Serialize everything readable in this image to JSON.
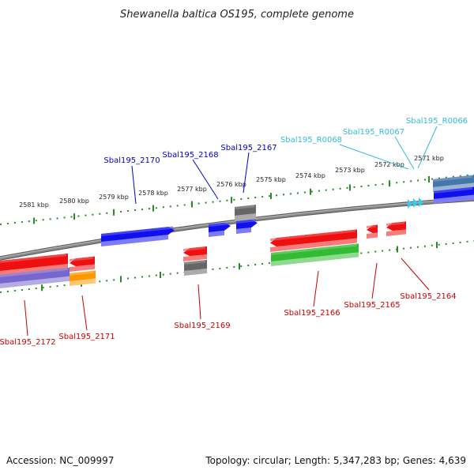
{
  "title": "Shewanella baltica OS195, complete genome",
  "footer": {
    "accession": "Accession: NC_009997",
    "summary": "Topology: circular; Length: 5,347,283 bp; Genes: 4,639"
  },
  "colors": {
    "backbone": "#8a8a8a",
    "tick": "#2a8a2a",
    "label_forward": "#0000cc",
    "label_reverse": "#cc0000",
    "label_rna": "#33bbdd",
    "gene_blue": "#1010ee",
    "gene_red": "#ee1010",
    "gene_green": "#33bb33",
    "gene_grey": "#666666",
    "gene_orange": "#ff9900",
    "gene_purple": "#7766cc",
    "gene_steel": "#4477aa",
    "rna_cyan": "#33ccee"
  },
  "scale_ticks": [
    "2581 kbp",
    "2580 kbp",
    "2579 kbp",
    "2578 kbp",
    "2577 kbp",
    "2576 kbp",
    "2575 kbp",
    "2574 kbp",
    "2573 kbp",
    "2572 kbp",
    "2571 kbp"
  ],
  "forward_labels": [
    "Sbal195_2170",
    "Sbal195_2168",
    "Sbal195_2167"
  ],
  "rna_labels": [
    "Sbal195_R0068",
    "Sbal195_R0067",
    "Sbal195_R0066"
  ],
  "reverse_labels": [
    "Sbal195_2172",
    "Sbal195_2171",
    "Sbal195_2169",
    "Sbal195_2166",
    "Sbal195_2165",
    "Sbal195_2164"
  ]
}
